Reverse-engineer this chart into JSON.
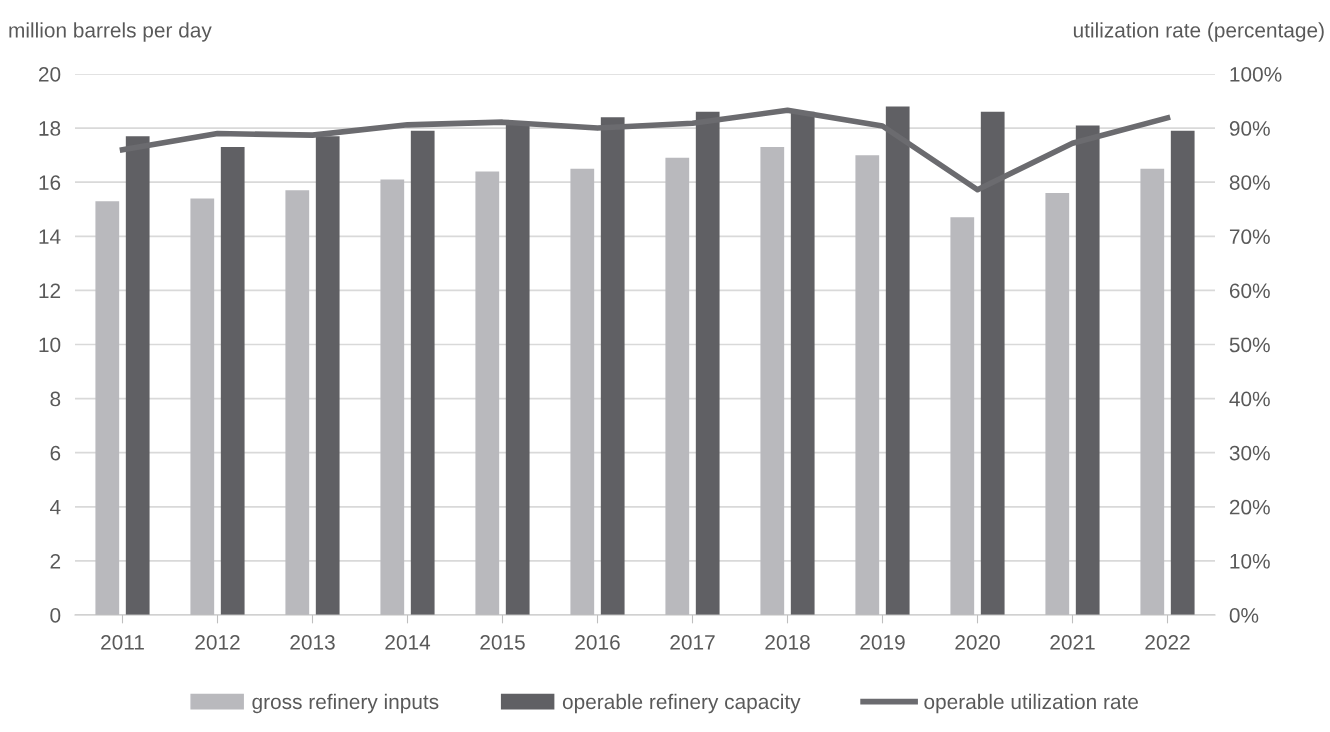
{
  "chart_data": {
    "type": "bar",
    "ylabel": "million barrels per day",
    "y2label": "utilization rate (percentage)",
    "categories": [
      "2011",
      "2012",
      "2013",
      "2014",
      "2015",
      "2016",
      "2017",
      "2018",
      "2019",
      "2020",
      "2021",
      "2022"
    ],
    "series": [
      {
        "name": "gross refinery inputs",
        "color": "#b9b9bd",
        "values": [
          15.3,
          15.4,
          15.7,
          16.1,
          16.4,
          16.5,
          16.9,
          17.3,
          17.0,
          14.7,
          15.6,
          16.5
        ]
      },
      {
        "name": "operable refinery capacity",
        "color": "#606064",
        "values": [
          17.7,
          17.3,
          17.7,
          17.9,
          18.2,
          18.4,
          18.6,
          18.6,
          18.8,
          18.6,
          18.1,
          17.9
        ]
      },
      {
        "name": "operable utilization rate",
        "color": "#6b6b6f",
        "type": "line",
        "axis": "y2",
        "values": [
          86,
          89,
          88.7,
          90.6,
          91.1,
          90,
          90.9,
          93.3,
          90.4,
          78.6,
          87.2,
          91.9
        ]
      }
    ],
    "ylim": [
      0,
      20
    ],
    "yticks": [
      0,
      2,
      4,
      6,
      8,
      10,
      12,
      14,
      16,
      18,
      20
    ],
    "y2lim": [
      0,
      100
    ],
    "y2ticks": [
      {
        "value": 0,
        "label": "0%"
      },
      {
        "value": 10,
        "label": "10%"
      },
      {
        "value": 20,
        "label": "20%"
      },
      {
        "value": 30,
        "label": "30%"
      },
      {
        "value": 40,
        "label": "40%"
      },
      {
        "value": 50,
        "label": "50%"
      },
      {
        "value": 60,
        "label": "60%"
      },
      {
        "value": 70,
        "label": "70%"
      },
      {
        "value": 80,
        "label": "80%"
      },
      {
        "value": 90,
        "label": "90%"
      },
      {
        "value": 100,
        "label": "100%"
      }
    ],
    "grid": "y",
    "legend": "bottom",
    "marker": "none",
    "line_style": "solid"
  }
}
